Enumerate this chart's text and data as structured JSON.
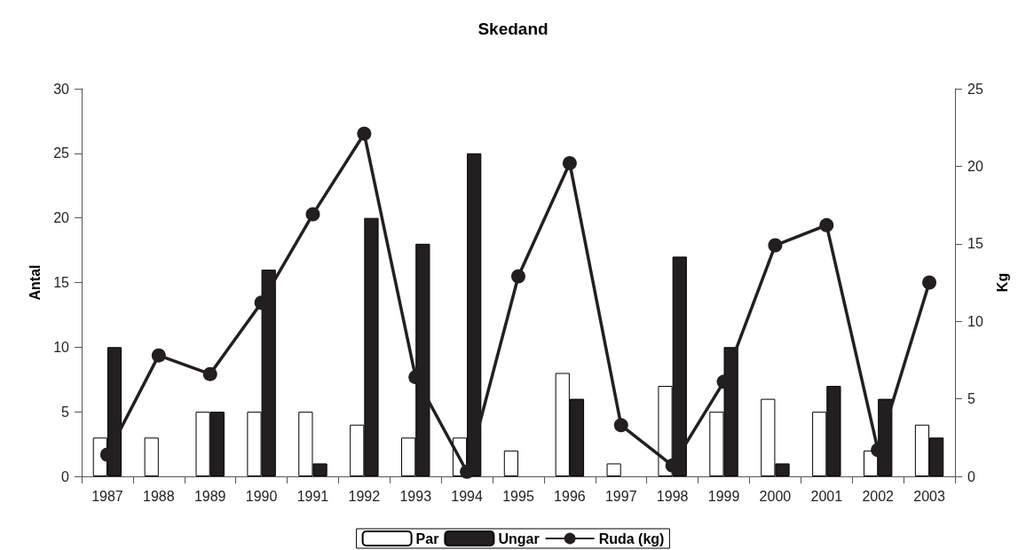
{
  "chart_data": {
    "type": "bar",
    "title": "Skedand",
    "ylabel": "Antal",
    "y2label": "Kg",
    "categories": [
      "1987",
      "1988",
      "1989",
      "1990",
      "1991",
      "1992",
      "1993",
      "1994",
      "1995",
      "1996",
      "1997",
      "1998",
      "1999",
      "2000",
      "2001",
      "2002",
      "2003"
    ],
    "series": [
      {
        "name": "Par",
        "color": "#ffffff",
        "values": [
          3,
          3,
          5,
          5,
          5,
          4,
          3,
          3,
          2,
          8,
          1,
          7,
          5,
          6,
          5,
          2,
          4
        ]
      },
      {
        "name": "Ungar",
        "color": "#231f20",
        "values": [
          10,
          null,
          5,
          16,
          1,
          20,
          18,
          25,
          null,
          6,
          null,
          17,
          10,
          1,
          7,
          6,
          3
        ]
      },
      {
        "name": "Ruda (kg)",
        "type": "line",
        "axis": "y2",
        "color": "#231f20",
        "values": [
          1.4,
          7.8,
          6.6,
          11.2,
          16.9,
          22.1,
          6.4,
          0.3,
          12.9,
          20.2,
          3.3,
          0.7,
          6.1,
          14.9,
          16.2,
          1.7,
          12.5
        ]
      }
    ],
    "ylim": [
      0,
      30
    ],
    "yticks": [
      0,
      5,
      10,
      15,
      20,
      25,
      30
    ],
    "y2lim": [
      0,
      25
    ],
    "y2ticks": [
      0,
      5,
      10,
      15,
      20,
      25
    ],
    "grid": false,
    "legend": "bottom",
    "marker": "circle",
    "line_style": "solid"
  }
}
